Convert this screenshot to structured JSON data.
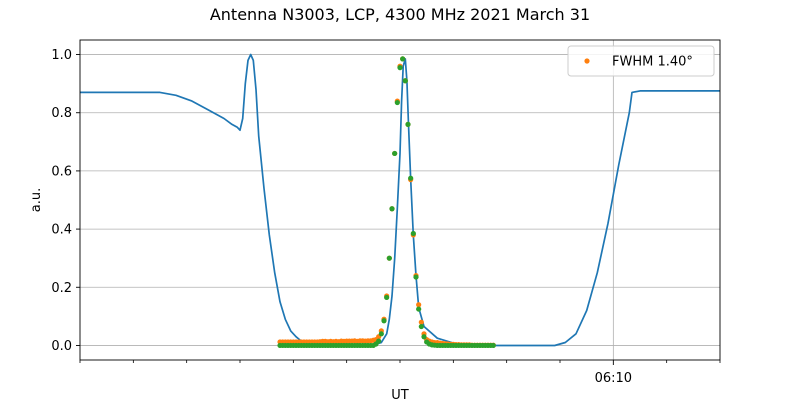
{
  "chart_data": {
    "type": "line",
    "title": "Antenna N3003, LCP, 4300 MHz 2021 March 31",
    "xlabel": "UT",
    "ylabel": "a.u.",
    "x_unit": "minutes UT",
    "xlim": [
      360.0,
      372.0
    ],
    "ylim": [
      -0.05,
      1.05
    ],
    "y_ticks": [
      0.0,
      0.2,
      0.4,
      0.6,
      0.8,
      1.0
    ],
    "y_tick_labels": [
      "0.0",
      "0.2",
      "0.4",
      "0.6",
      "0.8",
      "1.0"
    ],
    "x_major_ticks": [
      370.0
    ],
    "x_major_tick_labels": [
      "06:10"
    ],
    "x_minor_ticks": [
      360,
      361,
      362,
      363,
      364,
      365,
      366,
      367,
      368,
      369,
      371,
      372
    ],
    "grid": true,
    "legend_position": "upper right",
    "legend": [
      {
        "label": "FWHM 1.40°",
        "color": "#ff7f0e",
        "marker": "dot"
      }
    ],
    "series": [
      {
        "color": "#1f77b4",
        "style": "line",
        "x": [
          360.0,
          360.3,
          360.6,
          360.9,
          361.2,
          361.5,
          361.8,
          362.1,
          362.4,
          362.7,
          362.85,
          362.95,
          363.0,
          363.05,
          363.1,
          363.15,
          363.2,
          363.25,
          363.3,
          363.35,
          363.45,
          363.55,
          363.65,
          363.75,
          363.85,
          363.95,
          364.05,
          364.15,
          364.25,
          364.35,
          364.5,
          364.7,
          365.0,
          365.3,
          365.5,
          365.65,
          365.75,
          365.8,
          365.85,
          365.9,
          365.95,
          366.0,
          366.03,
          366.06,
          366.1,
          366.13,
          366.16,
          366.2,
          366.25,
          366.3,
          366.35,
          366.45,
          366.7,
          367.0,
          367.3,
          367.6,
          367.9,
          368.1,
          368.3,
          368.5,
          368.7,
          368.9,
          369.1,
          369.3,
          369.5,
          369.7,
          369.9,
          370.1,
          370.3,
          370.35,
          370.5,
          370.7,
          371.0,
          371.5,
          372.0
        ],
        "y": [
          0.87,
          0.87,
          0.87,
          0.87,
          0.87,
          0.87,
          0.86,
          0.84,
          0.81,
          0.78,
          0.76,
          0.75,
          0.74,
          0.78,
          0.9,
          0.98,
          1.0,
          0.98,
          0.88,
          0.72,
          0.54,
          0.38,
          0.25,
          0.15,
          0.09,
          0.05,
          0.03,
          0.015,
          0.008,
          0.003,
          0.0,
          0.0,
          0.0,
          0.0,
          0.002,
          0.01,
          0.04,
          0.09,
          0.17,
          0.3,
          0.47,
          0.66,
          0.84,
          0.96,
          0.985,
          0.91,
          0.76,
          0.57,
          0.38,
          0.24,
          0.13,
          0.065,
          0.025,
          0.008,
          0.002,
          0.0,
          0.0,
          0.0,
          0.0,
          0.0,
          0.0,
          0.0,
          0.01,
          0.04,
          0.12,
          0.25,
          0.42,
          0.62,
          0.8,
          0.87,
          0.875,
          0.875,
          0.875,
          0.875,
          0.875
        ]
      },
      {
        "color": "#ff7f0e",
        "style": "dots",
        "x": [
          363.75,
          363.8,
          363.85,
          363.9,
          363.95,
          364.0,
          364.05,
          364.1,
          364.15,
          364.2,
          364.25,
          364.3,
          364.35,
          364.4,
          364.45,
          364.5,
          364.55,
          364.6,
          364.65,
          364.7,
          364.75,
          364.8,
          364.85,
          364.9,
          364.95,
          365.0,
          365.05,
          365.1,
          365.15,
          365.2,
          365.25,
          365.3,
          365.35,
          365.4,
          365.45,
          365.5,
          365.55,
          365.6,
          365.65,
          365.7,
          365.75,
          365.8,
          365.85,
          365.9,
          365.95,
          366.0,
          366.05,
          366.1,
          366.15,
          366.2,
          366.25,
          366.3,
          366.35,
          366.4,
          366.45,
          366.5,
          366.55,
          366.6,
          366.65,
          366.7,
          366.75,
          366.8,
          366.85,
          366.9,
          366.95,
          367.0,
          367.05,
          367.1,
          367.15,
          367.2,
          367.25,
          367.3,
          367.35,
          367.4,
          367.45,
          367.5,
          367.55,
          367.6,
          367.65,
          367.7,
          367.75
        ],
        "y": [
          0.012,
          0.012,
          0.012,
          0.012,
          0.012,
          0.012,
          0.012,
          0.012,
          0.012,
          0.012,
          0.012,
          0.012,
          0.012,
          0.012,
          0.012,
          0.013,
          0.014,
          0.014,
          0.013,
          0.014,
          0.013,
          0.014,
          0.013,
          0.015,
          0.014,
          0.015,
          0.015,
          0.015,
          0.016,
          0.014,
          0.016,
          0.016,
          0.015,
          0.016,
          0.016,
          0.018,
          0.02,
          0.03,
          0.05,
          0.09,
          0.17,
          0.3,
          0.47,
          0.66,
          0.84,
          0.96,
          0.985,
          0.91,
          0.76,
          0.57,
          0.38,
          0.24,
          0.14,
          0.08,
          0.04,
          0.02,
          0.015,
          0.012,
          0.01,
          0.01,
          0.008,
          0.007,
          0.006,
          0.005,
          0.004,
          0.004,
          0.003,
          0.003,
          0.002,
          0.002,
          0.002,
          0.002,
          0.001,
          0.001,
          0.001,
          0.001,
          0.001,
          0.001,
          0.001,
          0.001,
          0.001
        ]
      },
      {
        "color": "#2ca02c",
        "style": "dots",
        "x": [
          363.75,
          363.8,
          363.85,
          363.9,
          363.95,
          364.0,
          364.05,
          364.1,
          364.15,
          364.2,
          364.25,
          364.3,
          364.35,
          364.4,
          364.45,
          364.5,
          364.55,
          364.6,
          364.65,
          364.7,
          364.75,
          364.8,
          364.85,
          364.9,
          364.95,
          365.0,
          365.05,
          365.1,
          365.15,
          365.2,
          365.25,
          365.3,
          365.35,
          365.4,
          365.45,
          365.5,
          365.55,
          365.6,
          365.65,
          365.7,
          365.75,
          365.8,
          365.85,
          365.9,
          365.95,
          366.0,
          366.05,
          366.1,
          366.15,
          366.2,
          366.25,
          366.3,
          366.35,
          366.4,
          366.45,
          366.5,
          366.55,
          366.6,
          366.65,
          366.7,
          366.75,
          366.8,
          366.85,
          366.9,
          366.95,
          367.0,
          367.05,
          367.1,
          367.15,
          367.2,
          367.25,
          367.3,
          367.35,
          367.4,
          367.45,
          367.5,
          367.55,
          367.6,
          367.65,
          367.7,
          367.75
        ],
        "y": [
          0.0,
          0.0,
          0.0,
          0.0,
          0.0,
          0.0,
          0.0,
          0.0,
          0.0,
          0.0,
          0.0,
          0.0,
          0.0,
          0.0,
          0.0,
          0.0,
          0.0,
          0.0,
          0.0,
          0.0,
          0.0,
          0.0,
          0.0,
          0.0,
          0.0,
          0.0,
          0.0,
          0.0,
          0.0,
          0.0,
          0.0,
          0.0,
          0.0,
          0.0,
          0.0,
          0.0,
          0.005,
          0.015,
          0.04,
          0.085,
          0.165,
          0.3,
          0.47,
          0.66,
          0.835,
          0.955,
          0.985,
          0.91,
          0.76,
          0.575,
          0.385,
          0.235,
          0.125,
          0.065,
          0.03,
          0.012,
          0.005,
          0.002,
          0.001,
          0.0,
          0.0,
          0.0,
          0.0,
          0.0,
          0.0,
          0.0,
          0.0,
          0.0,
          0.0,
          0.0,
          0.0,
          0.0,
          0.0,
          0.0,
          0.0,
          0.0,
          0.0,
          0.0,
          0.0,
          0.0,
          0.0
        ]
      }
    ]
  }
}
